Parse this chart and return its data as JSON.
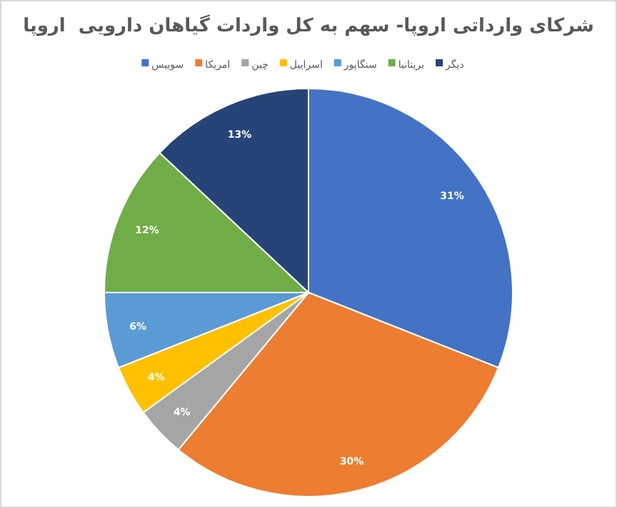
{
  "chart_data": {
    "type": "pie",
    "title": "شرکای وارداتی اروپا- سهم به کل واردات گیاهان دارویی  اروپا",
    "categories": [
      "سوییس",
      "امریکا",
      "چین",
      "اسراییل",
      "سنگاپور",
      "بریتانیا",
      "دیگر"
    ],
    "values": [
      31,
      30,
      4,
      4,
      6,
      12,
      13
    ],
    "colors": [
      "#4472c4",
      "#ed7d31",
      "#a5a5a5",
      "#ffc000",
      "#5b9bd5",
      "#70ad47",
      "#264478"
    ],
    "value_labels": [
      "31%",
      "30%",
      "4%",
      "4%",
      "6%",
      "12%",
      "13%"
    ],
    "legend": "top"
  }
}
